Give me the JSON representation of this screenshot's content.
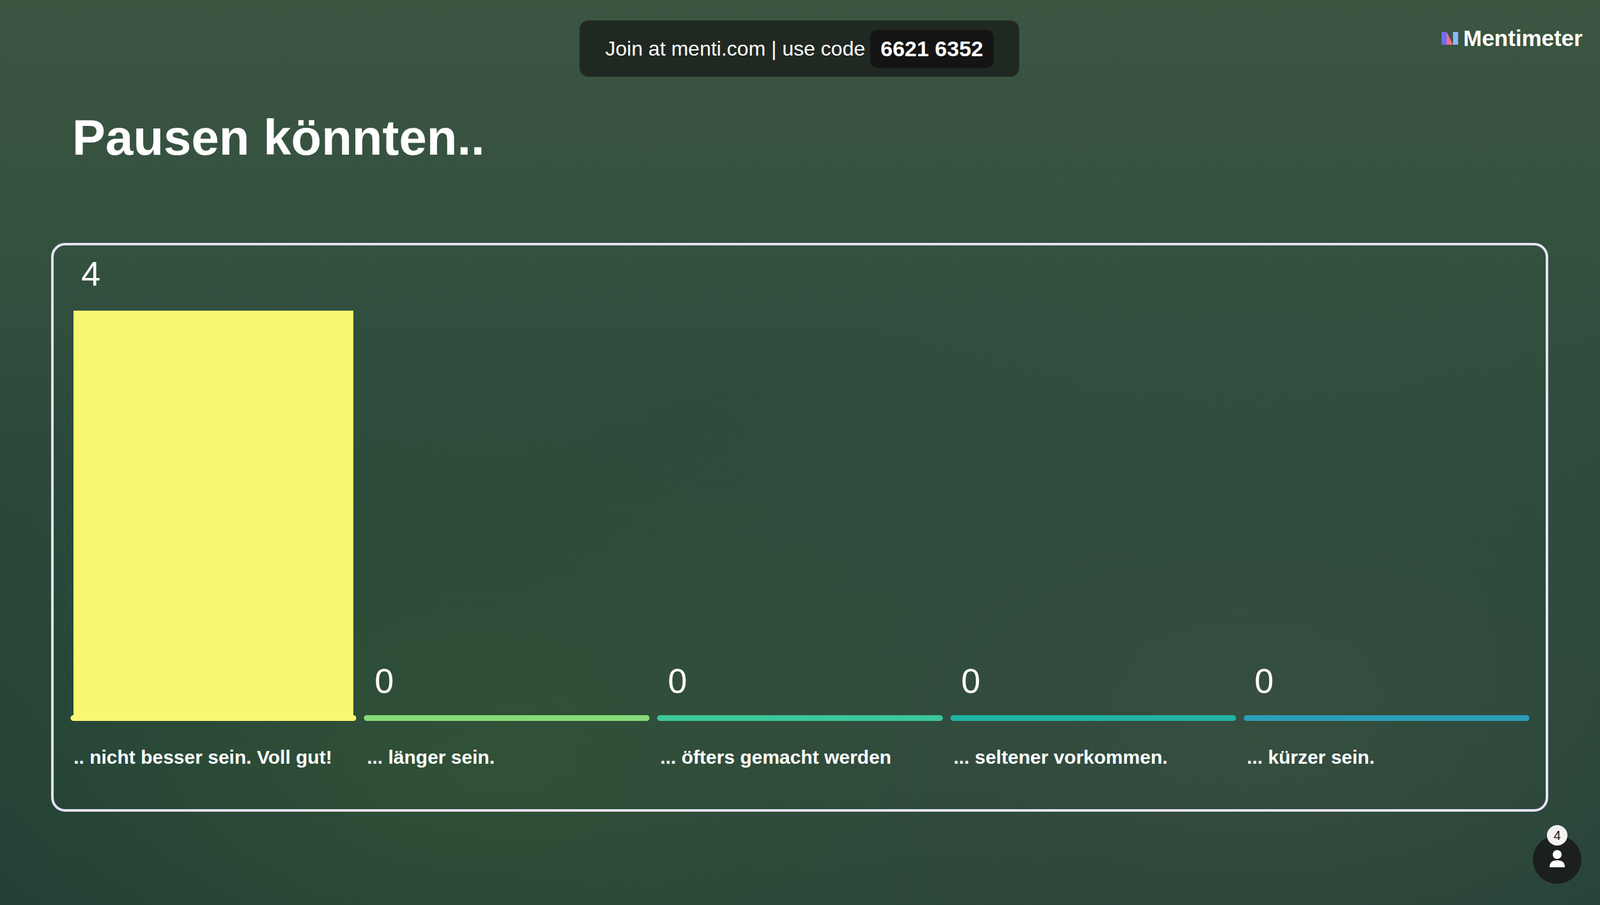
{
  "header": {
    "join_text": "Join at menti.com | use code",
    "code": "6621 6352"
  },
  "brand": "Mentimeter",
  "participants": 4,
  "chart_data": {
    "type": "bar",
    "title": "Pausen könnten..",
    "categories": [
      ".. nicht besser sein. Voll gut!",
      "... länger sein.",
      "... öfters gemacht werden",
      "... seltener vorkommen.",
      "... kürzer sein."
    ],
    "values": [
      4,
      0,
      0,
      0,
      0
    ],
    "colors": [
      "#FAF870",
      "#86DC78",
      "#3CC79A",
      "#20B3A6",
      "#2B9DB8"
    ],
    "ylim": [
      0,
      4
    ],
    "data_labels": true,
    "tick_labels": "x"
  }
}
